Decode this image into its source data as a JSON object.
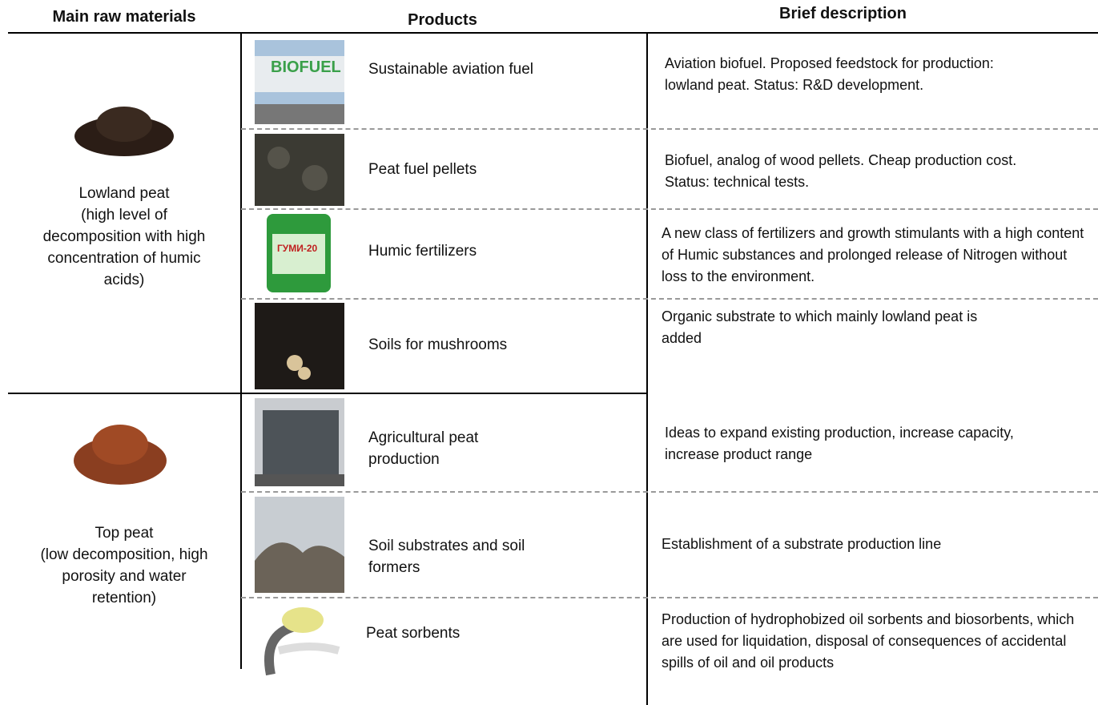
{
  "header": {
    "materials": "Main raw materials",
    "products": "Products",
    "description": "Brief description"
  },
  "groups": [
    {
      "material": {
        "name": "Lowland peat",
        "note": "(high level of decomposition with high concentration of humic acids)"
      },
      "rows": [
        {
          "product": "Sustainable aviation fuel",
          "description": "Aviation biofuel. Proposed feedstock for production: lowland peat. Status: R&D development."
        },
        {
          "product": "Peat fuel pellets",
          "description": "Biofuel, analog of wood pellets. Cheap production cost. Status: technical tests."
        },
        {
          "product": "Humic fertilizers",
          "description": "A new class of fertilizers and growth stimulants with a high content of Humic substances and prolonged release of Nitrogen without loss to the environment."
        },
        {
          "product": "Soils for mushrooms",
          "description": "Organic substrate to which mainly lowland peat is added"
        }
      ]
    },
    {
      "material": {
        "name": "Top peat",
        "note": "(low decomposition, high porosity and water retention)"
      },
      "rows": [
        {
          "product": "Agricultural peat production",
          "description": "Ideas to expand existing production, increase capacity, increase product range"
        },
        {
          "product": "Soil substrates and soil formers",
          "description": "Establishment of a substrate production line"
        },
        {
          "product": "Peat sorbents",
          "description": "Production of hydrophobized oil sorbents and biosorbents, which are used for liquidation, disposal of consequences of accidental spills of oil and oil products"
        }
      ]
    }
  ]
}
